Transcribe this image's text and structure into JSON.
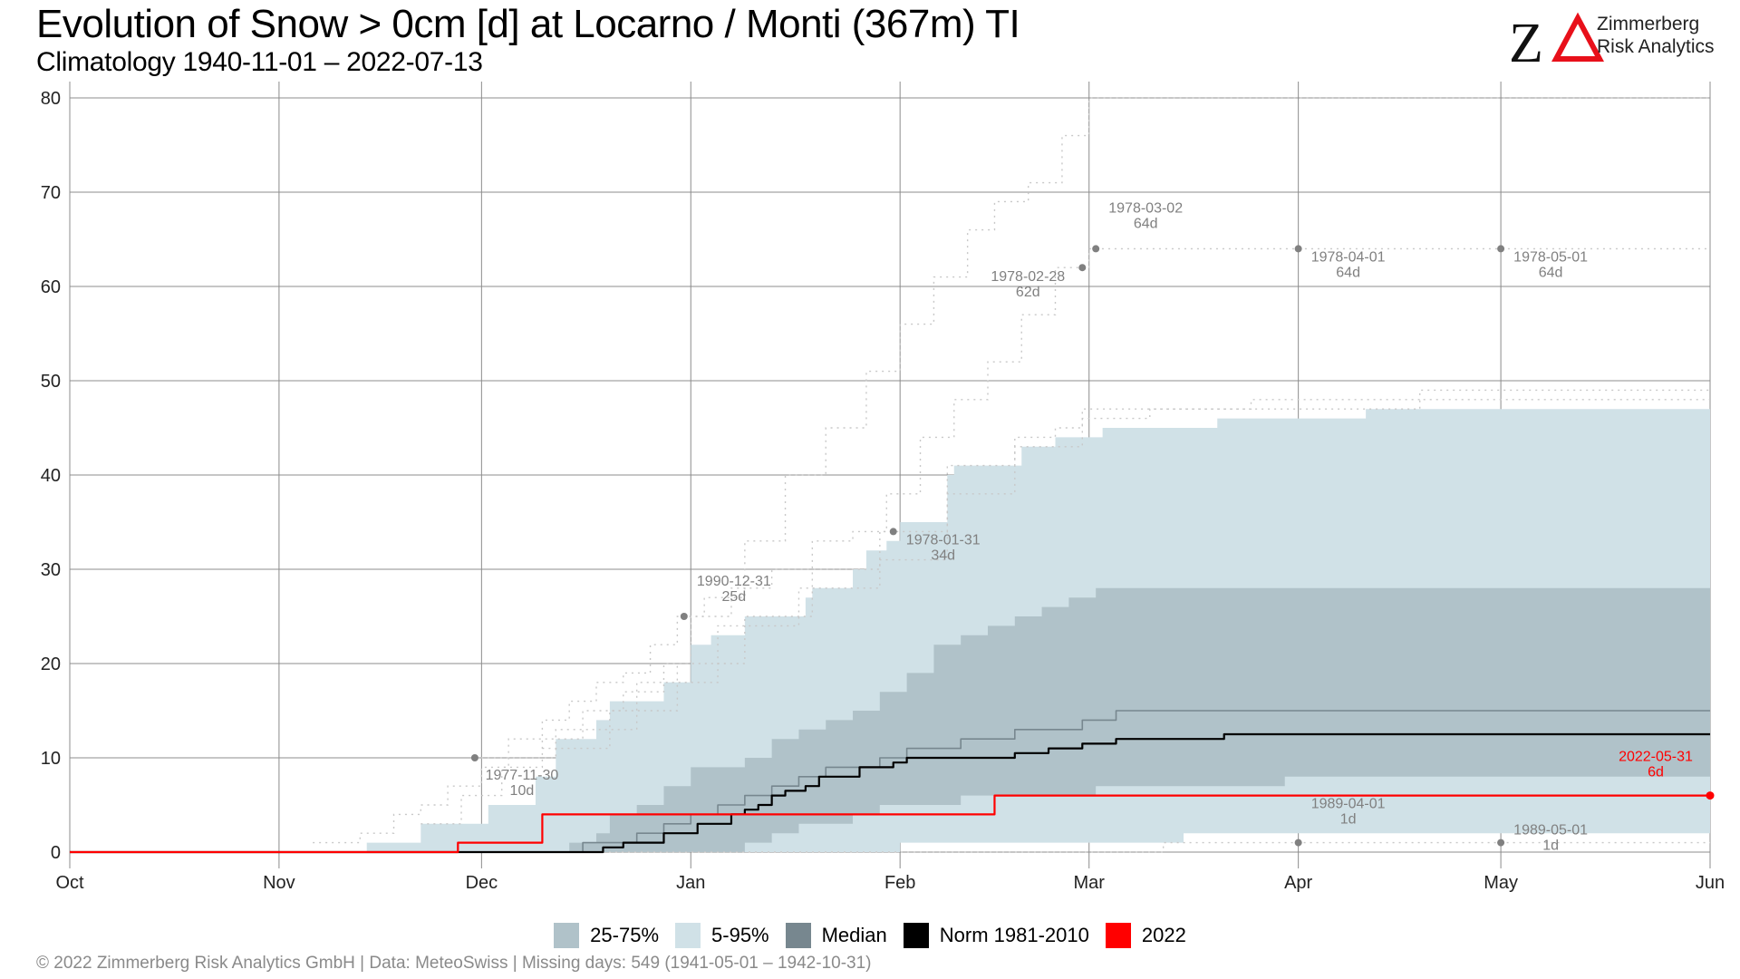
{
  "header": {
    "title": "Evolution of Snow > 0cm [d] at Locarno / Monti (367m) TI",
    "subtitle": "Climatology 1940-11-01 – 2022-07-13"
  },
  "logo": {
    "mark": "ZΔ",
    "line1": "Zimmerberg",
    "line2": "Risk Analytics",
    "colors": {
      "z": "#111111",
      "delta": "#e8101a"
    }
  },
  "footer": {
    "caption": "©  2022 Zimmerberg Risk Analytics GmbH | Data: MeteoSwiss | Missing days: 549 (1941-05-01 – 1942-10-31)"
  },
  "legend": [
    {
      "label": "25-75%",
      "color": "#b0c2c9"
    },
    {
      "label": "5-95%",
      "color": "#d0e1e7"
    },
    {
      "label": "Median",
      "color": "#77878f"
    },
    {
      "label": "Norm 1981-2010",
      "color": "#000000"
    },
    {
      "label": "2022",
      "color": "#ff0000"
    }
  ],
  "chart_data": {
    "type": "area",
    "x_axis": {
      "ticks": [
        "Oct",
        "Nov",
        "Dec",
        "Jan",
        "Feb",
        "Mar",
        "Apr",
        "May",
        "Jun"
      ],
      "tick_days": [
        0,
        31,
        61,
        92,
        123,
        151,
        182,
        212,
        243
      ],
      "range_days": [
        0,
        243
      ]
    },
    "y_axis": {
      "ticks": [
        0,
        10,
        20,
        30,
        40,
        50,
        60,
        70,
        80
      ],
      "ylim": [
        0,
        80
      ]
    },
    "grid": true,
    "legend_position": "bottom",
    "series": [
      {
        "name": "5-95%",
        "kind": "band",
        "color": "#d0e1e7",
        "x": [
          0,
          43,
          44,
          51,
          52,
          60,
          62,
          69,
          72,
          78,
          80,
          86,
          88,
          92,
          95,
          100,
          104,
          109,
          110,
          116,
          118,
          121,
          123,
          130,
          131,
          140,
          141,
          146,
          151,
          153,
          165,
          170,
          175,
          185,
          192,
          200,
          212,
          230,
          243
        ],
        "upper": [
          0,
          0,
          1,
          1,
          3,
          3,
          5,
          8,
          12,
          14,
          16,
          16,
          18,
          22,
          23,
          25,
          25,
          27,
          28,
          30,
          32,
          33,
          35,
          40,
          41,
          41,
          43,
          44,
          44,
          45,
          45,
          46,
          46,
          46,
          47,
          47,
          47,
          47,
          47
        ],
        "lower": [
          0,
          0,
          0,
          0,
          0,
          0,
          0,
          0,
          0,
          0,
          0,
          0,
          0,
          0,
          0,
          0,
          0,
          0,
          0,
          0,
          0,
          0,
          1,
          1,
          1,
          1,
          1,
          1,
          1,
          1,
          2,
          2,
          2,
          2,
          2,
          2,
          2,
          2,
          2
        ]
      },
      {
        "name": "25-75%",
        "kind": "band",
        "color": "#b0c2c9",
        "x": [
          0,
          72,
          74,
          78,
          80,
          84,
          88,
          92,
          96,
          100,
          104,
          108,
          112,
          116,
          120,
          124,
          128,
          132,
          136,
          140,
          144,
          148,
          152,
          160,
          170,
          180,
          190,
          200,
          212,
          243
        ],
        "upper": [
          0,
          0,
          1,
          2,
          4,
          5,
          7,
          9,
          9,
          10,
          12,
          13,
          14,
          15,
          17,
          19,
          22,
          23,
          24,
          25,
          26,
          27,
          28,
          28,
          28,
          28,
          28,
          28,
          28,
          28
        ],
        "lower": [
          0,
          0,
          0,
          0,
          0,
          0,
          0,
          0,
          0,
          1,
          2,
          3,
          3,
          4,
          5,
          5,
          5,
          6,
          6,
          6,
          6,
          6,
          7,
          7,
          7,
          8,
          8,
          8,
          8,
          8
        ]
      },
      {
        "name": "Median",
        "color": "#77878f",
        "x": [
          0,
          74,
          76,
          80,
          84,
          88,
          92,
          96,
          100,
          104,
          108,
          112,
          116,
          120,
          124,
          132,
          140,
          150,
          155,
          200,
          243
        ],
        "y": [
          0,
          0,
          1,
          1,
          2,
          3,
          4,
          5,
          6,
          7,
          8,
          9,
          9,
          10,
          11,
          12,
          13,
          14,
          15,
          15,
          15
        ]
      },
      {
        "name": "Norm 1981-2010",
        "color": "#000000",
        "x": [
          0,
          78,
          79,
          81,
          82,
          86,
          88,
          90,
          93,
          96,
          98,
          100,
          102,
          104,
          106,
          109,
          111,
          117,
          119,
          122,
          124,
          130,
          136,
          140,
          145,
          150,
          152,
          155,
          170,
          171,
          200,
          243
        ],
        "y": [
          0,
          0,
          0.5,
          0.5,
          1,
          1,
          2,
          2,
          3,
          3,
          4,
          4.5,
          5,
          6,
          6.5,
          7,
          8,
          9,
          9,
          9.5,
          10,
          10,
          10,
          10.5,
          11,
          11.5,
          11.5,
          12,
          12,
          12.5,
          12.5,
          12.5
        ]
      },
      {
        "name": "2022",
        "color": "#ff0000",
        "x": [
          0,
          57,
          57.5,
          67,
          70,
          135,
          137,
          243
        ],
        "y": [
          0,
          0,
          1,
          1,
          4,
          4,
          6,
          6
        ],
        "end_point": {
          "x": 243,
          "y": 6
        }
      }
    ],
    "record_lines": [
      {
        "x": [
          36,
          40,
          43,
          48,
          52,
          56,
          61,
          65,
          70,
          74,
          78,
          82,
          86,
          90,
          94,
          100,
          106,
          112,
          118,
          123,
          128,
          133,
          137,
          142,
          147,
          151,
          243
        ],
        "y": [
          1,
          1,
          2,
          4,
          5,
          7,
          9,
          12,
          14,
          16,
          18,
          19,
          22,
          25,
          27,
          33,
          40,
          45,
          51,
          56,
          61,
          66,
          69,
          71,
          76,
          80,
          80
        ]
      },
      {
        "x": [
          52,
          58,
          64,
          70,
          76,
          82,
          88,
          92,
          98,
          104,
          110,
          116,
          121,
          126,
          131,
          136,
          141,
          146,
          151,
          243
        ],
        "y": [
          3,
          6,
          9,
          12,
          15,
          17,
          20,
          25,
          28,
          30,
          33,
          34,
          38,
          44,
          48,
          52,
          57,
          62,
          64,
          64
        ]
      },
      {
        "x": [
          70,
          80,
          90,
          100,
          110,
          120,
          130,
          140,
          146,
          150,
          160,
          175,
          200,
          243
        ],
        "y": [
          11,
          15,
          20,
          25,
          30,
          34,
          41,
          44,
          45,
          46,
          47,
          48,
          49,
          49
        ]
      },
      {
        "x": [
          60,
          72,
          84,
          96,
          108,
          120,
          130,
          140,
          150,
          170,
          200,
          243
        ],
        "y": [
          10,
          13,
          18,
          24,
          28,
          31,
          38,
          43,
          47,
          47,
          48,
          48
        ]
      },
      {
        "x": [
          0,
          160,
          162,
          243
        ],
        "y": [
          0,
          0,
          1,
          1
        ]
      }
    ],
    "annotations": [
      {
        "date": "1977-11-30",
        "value": "10d",
        "x": 60,
        "y": 10,
        "label_dx": 12,
        "label_dy": 24,
        "color": "#808080"
      },
      {
        "date": "1990-12-31",
        "value": "25d",
        "x": 91,
        "y": 25,
        "label_dx": 15,
        "label_dy": -34,
        "color": "#808080"
      },
      {
        "date": "1978-01-31",
        "value": "34d",
        "x": 122,
        "y": 34,
        "label_dx": 15,
        "label_dy": 14,
        "color": "#808080"
      },
      {
        "date": "1978-02-28",
        "value": "62d",
        "x": 150,
        "y": 62,
        "label_dx": -100,
        "label_dy": 15,
        "color": "#808080"
      },
      {
        "date": "1978-03-02",
        "value": "64d",
        "x": 152,
        "y": 64,
        "label_dx": 15,
        "label_dy": -40,
        "color": "#808080"
      },
      {
        "date": "1978-04-01",
        "value": "64d",
        "x": 182,
        "y": 64,
        "label_dx": 15,
        "label_dy": 14,
        "color": "#808080"
      },
      {
        "date": "1978-05-01",
        "value": "64d",
        "x": 212,
        "y": 64,
        "label_dx": 15,
        "label_dy": 14,
        "color": "#808080"
      },
      {
        "date": "1989-04-01",
        "value": "1d",
        "x": 182,
        "y": 1,
        "label_dx": 15,
        "label_dy": -38,
        "color": "#808080"
      },
      {
        "date": "1989-05-01",
        "value": "1d",
        "x": 212,
        "y": 1,
        "label_dx": 15,
        "label_dy": -9,
        "color": "#808080"
      },
      {
        "date": "2022-05-31",
        "value": "6d",
        "x": 243,
        "y": 6,
        "label_dx": -100,
        "label_dy": -38,
        "color": "#ff0000"
      }
    ]
  }
}
